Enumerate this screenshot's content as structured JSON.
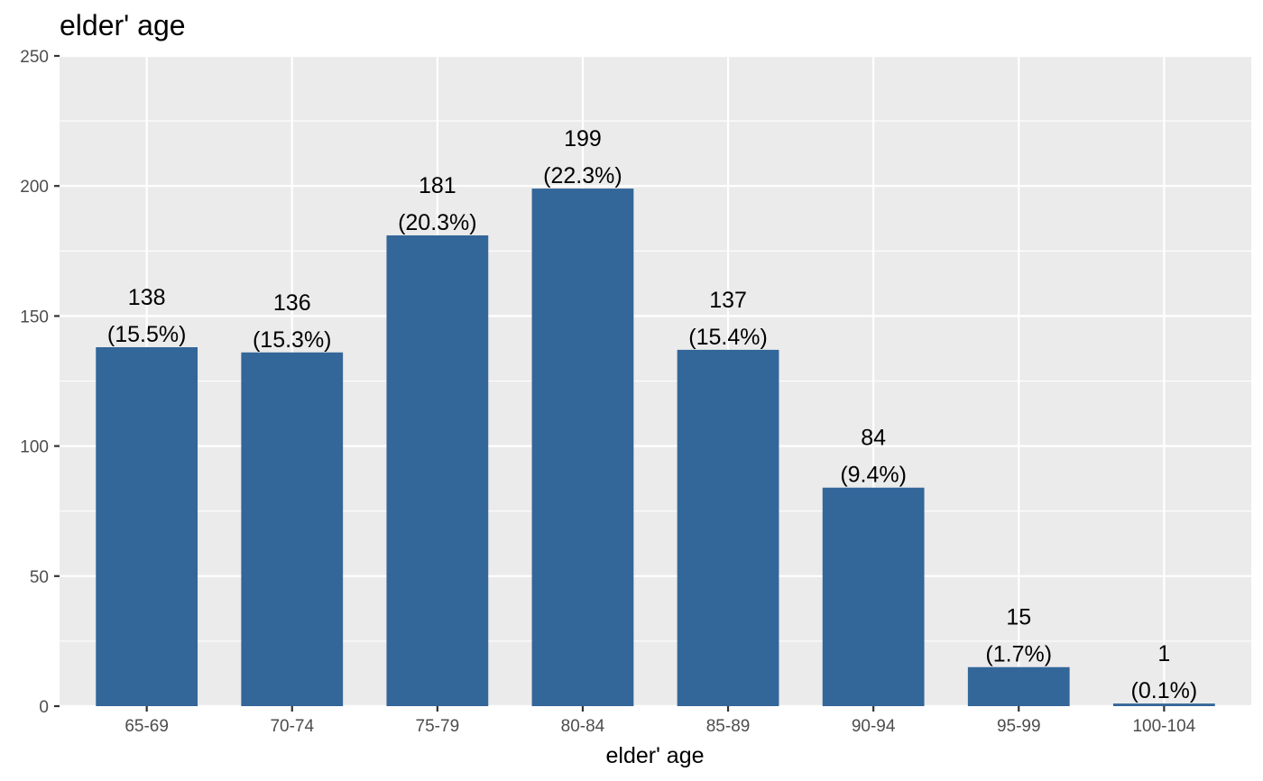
{
  "chart_data": {
    "type": "bar",
    "title": "elder' age",
    "xlabel": "elder' age",
    "ylabel": "",
    "categories": [
      "65-69",
      "70-74",
      "75-79",
      "80-84",
      "85-89",
      "90-94",
      "95-99",
      "100-104"
    ],
    "values": [
      138,
      136,
      181,
      199,
      137,
      84,
      15,
      1
    ],
    "labels": [
      [
        "138",
        "(15.5%)"
      ],
      [
        "136",
        "(15.3%)"
      ],
      [
        "181",
        "(20.3%)"
      ],
      [
        "199",
        "(22.3%)"
      ],
      [
        "137",
        "(15.4%)"
      ],
      [
        "84",
        "(9.4%)"
      ],
      [
        "15",
        "(1.7%)"
      ],
      [
        "1",
        "(0.1%)"
      ]
    ],
    "ylim": [
      0,
      250
    ],
    "yticks": [
      "0",
      "50",
      "100",
      "150",
      "200",
      "250"
    ],
    "grid": true,
    "colors": {
      "bar": "#336699",
      "panel": "#ebebeb",
      "grid": "#ffffff"
    }
  }
}
